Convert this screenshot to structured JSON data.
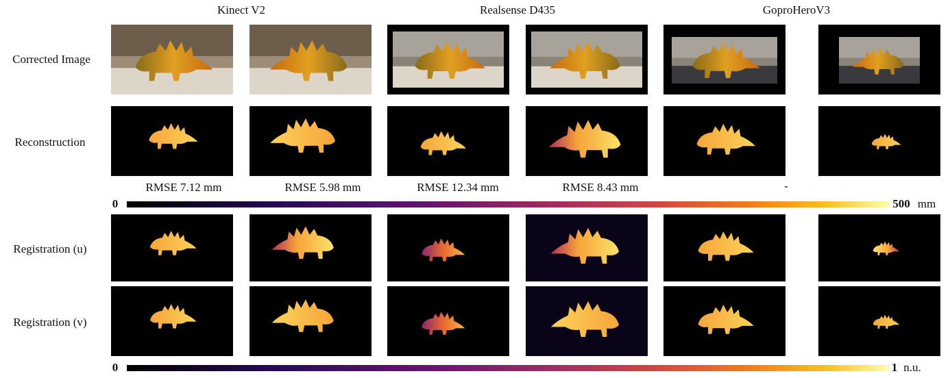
{
  "columns": [
    "Kinect V2",
    "Realsense D435",
    "GoproHeroV3"
  ],
  "rows": [
    "Corrected Image",
    "Reconstruction",
    "Registration (u)",
    "Registration (v)"
  ],
  "rmse": [
    "RMSE 7.12 mm",
    "RMSE 5.98 mm",
    "RMSE 12.34 mm",
    "RMSE 8.43 mm",
    "-"
  ],
  "depth_colorbar": {
    "min": "0",
    "max": "500",
    "unit": "mm"
  },
  "registration_colorbar": {
    "min": "0",
    "max": "1",
    "unit": "n.u."
  }
}
